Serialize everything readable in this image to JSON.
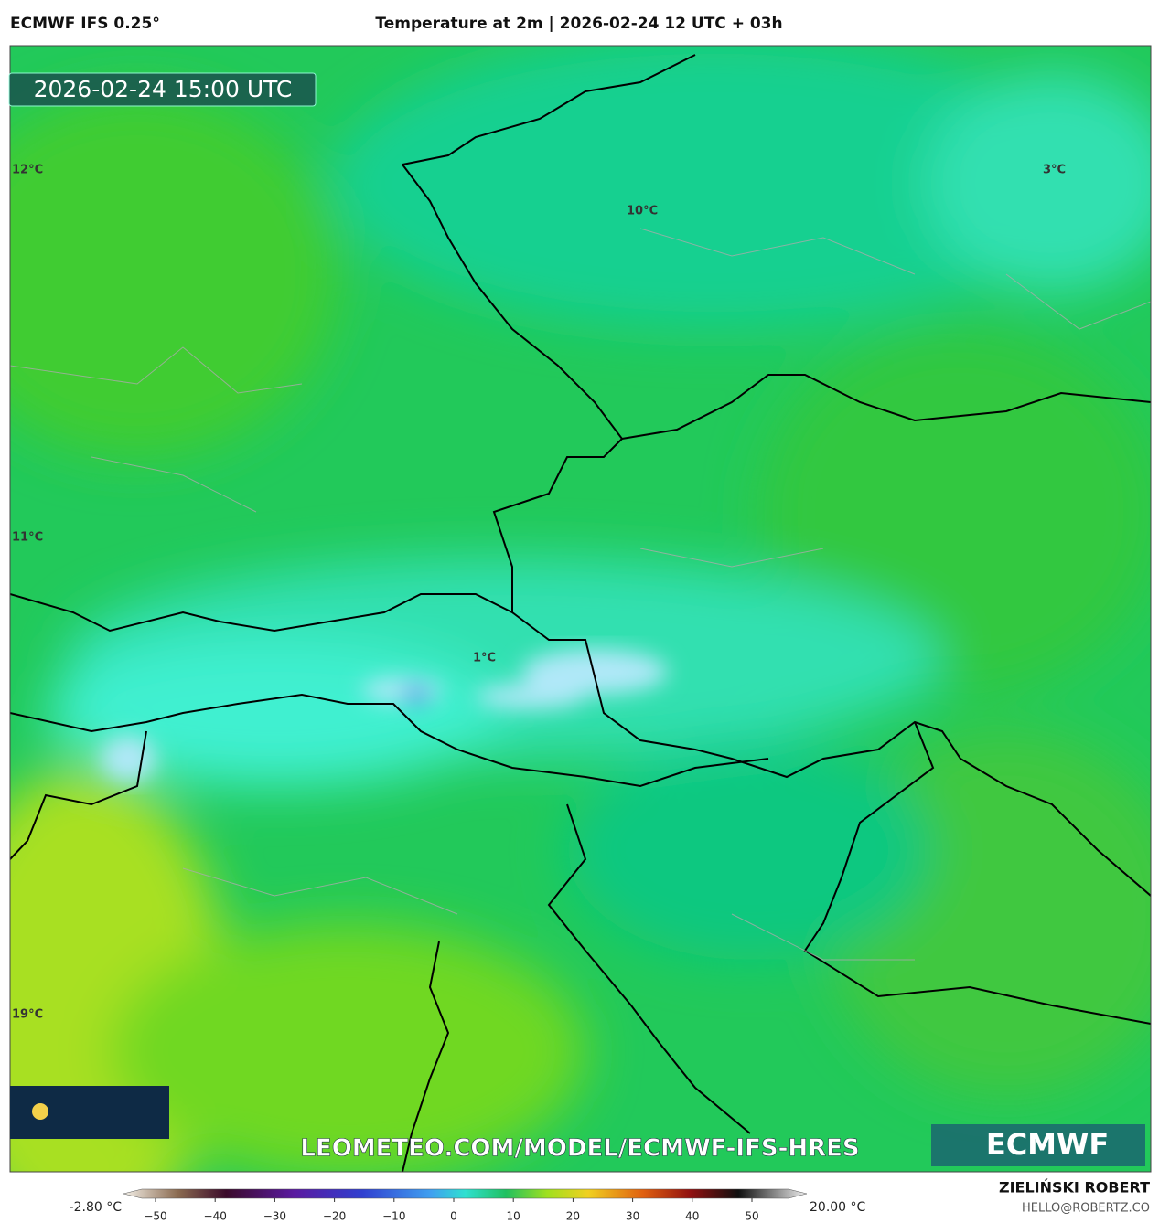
{
  "header": {
    "model": "ECMWF IFS 0.25°",
    "title": "Temperature at 2m | 2026-02-24 12 UTC + 03h"
  },
  "timestamp": "2026-02-24 15:00 UTC",
  "map": {
    "labels": [
      "12°C",
      "10°C",
      "3°C",
      "11°C",
      "1°C",
      "19°C"
    ]
  },
  "watermark": "LEOMETEO.COM/MODEL/ECMWF-IFS-HRES",
  "logo": "ECMWF",
  "colorbar": {
    "min_label": "-2.80 °C",
    "max_label": "20.00 °C",
    "ticks": [
      "−50",
      "−40",
      "−30",
      "−20",
      "−10",
      "0",
      "10",
      "20",
      "30",
      "40",
      "50"
    ]
  },
  "credits": {
    "name": "ZIELIŃSKI ROBERT",
    "email": "HELLO@ROBERTZ.CO"
  }
}
